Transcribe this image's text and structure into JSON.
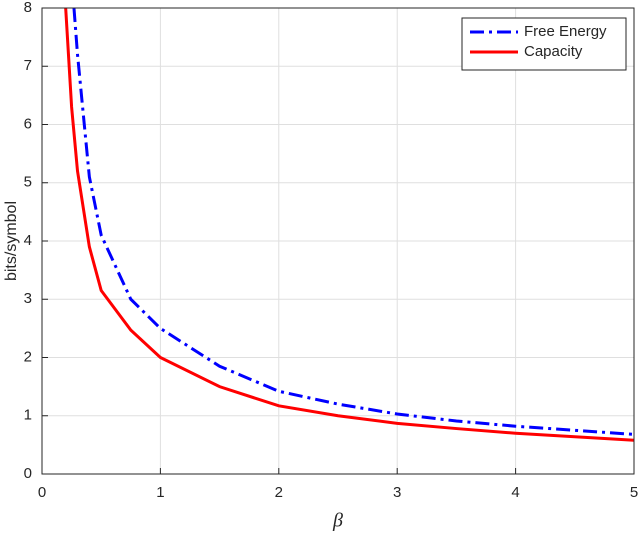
{
  "chart_data": {
    "type": "line",
    "xlabel": "β",
    "ylabel": "bits/symbol",
    "xlim": [
      0,
      5
    ],
    "ylim": [
      0,
      8
    ],
    "xticks": [
      0,
      1,
      2,
      3,
      4,
      5
    ],
    "yticks": [
      0,
      1,
      2,
      3,
      4,
      5,
      6,
      7,
      8
    ],
    "grid": true,
    "legend": "upper right",
    "series": [
      {
        "name": "Free Energy",
        "color": "#0000ff",
        "dash": "dashdot",
        "x": [
          0.27,
          0.3,
          0.4,
          0.5,
          0.75,
          1,
          1.5,
          2,
          2.5,
          3,
          3.5,
          4,
          4.5,
          5
        ],
        "values": [
          8,
          7.2,
          5.1,
          4.1,
          3.0,
          2.5,
          1.85,
          1.42,
          1.2,
          1.03,
          0.91,
          0.82,
          0.75,
          0.68
        ]
      },
      {
        "name": "Capacity",
        "color": "#ff0000",
        "dash": "solid",
        "x": [
          0.2,
          0.25,
          0.3,
          0.4,
          0.5,
          0.75,
          1,
          1.5,
          2,
          2.5,
          3,
          3.5,
          4,
          4.5,
          5
        ],
        "values": [
          8,
          6.3,
          5.2,
          3.9,
          3.15,
          2.47,
          2.0,
          1.5,
          1.17,
          1.0,
          0.87,
          0.78,
          0.7,
          0.64,
          0.58
        ]
      }
    ]
  }
}
